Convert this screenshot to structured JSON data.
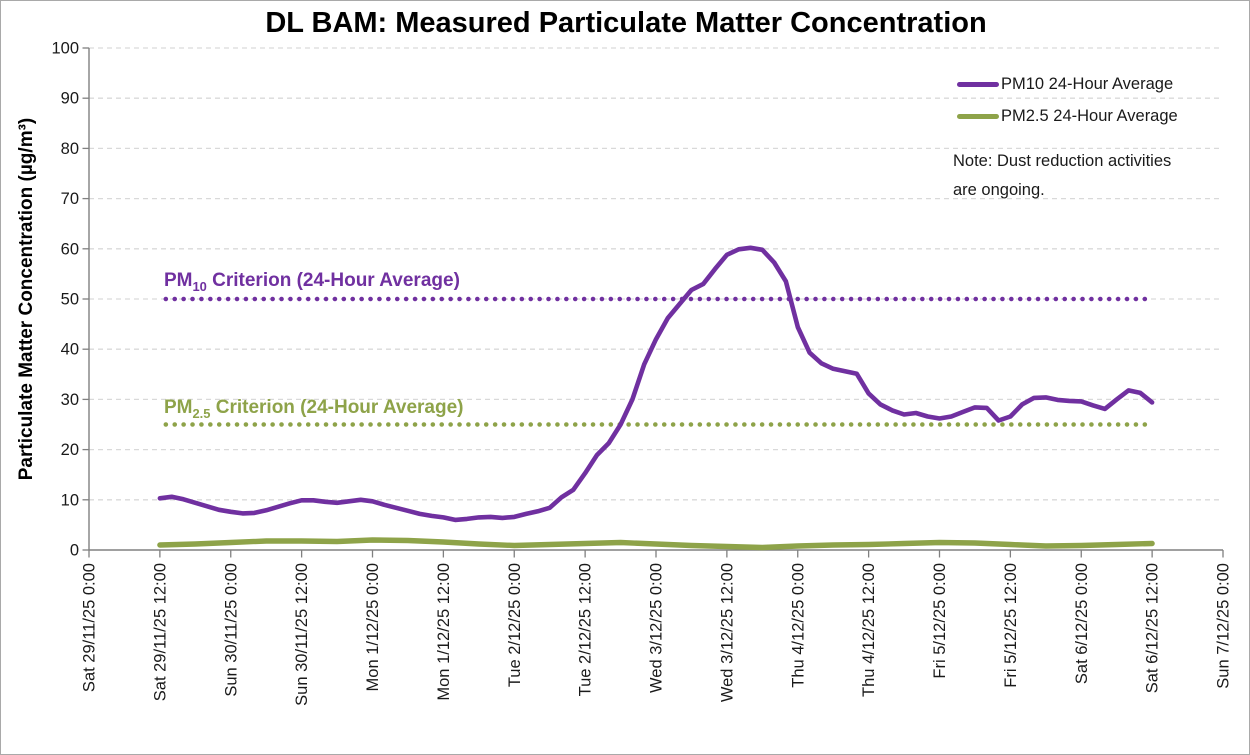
{
  "chart_data": {
    "type": "line",
    "title": "DL BAM: Measured Particulate Matter Concentration",
    "ylabel": "Particulate Matter Concentration (µg/m³)",
    "xlabel": "",
    "ylim": [
      0,
      100
    ],
    "ytick_step": 10,
    "yticks": [
      0,
      10,
      20,
      30,
      40,
      50,
      60,
      70,
      80,
      90,
      100
    ],
    "grid": "horizontal-dashed",
    "legend_position": "top-right",
    "x_axis_hours_range": [
      -12,
      180
    ],
    "x_tick_labels": [
      "Sat 29/11/25 0:00",
      "Sat 29/11/25 12:00",
      "Sun 30/11/25 0:00",
      "Sun 30/11/25 12:00",
      "Mon 1/12/25 0:00",
      "Mon 1/12/25 12:00",
      "Tue 2/12/25 0:00",
      "Tue 2/12/25 12:00",
      "Wed 3/12/25 0:00",
      "Wed 3/12/25 12:00",
      "Thu 4/12/25 0:00",
      "Thu 4/12/25 12:00",
      "Fri 5/12/25 0:00",
      "Fri 5/12/25 12:00",
      "Sat 6/12/25 0:00",
      "Sat 6/12/25 12:00",
      "Sun 7/12/25 0:00"
    ],
    "series": [
      {
        "name": "PM10 24-Hour Average",
        "color": "#7030A0",
        "x_hours": [
          0,
          2,
          4,
          6,
          8,
          10,
          12,
          14,
          16,
          18,
          20,
          22,
          24,
          26,
          28,
          30,
          32,
          34,
          36,
          38,
          40,
          42,
          44,
          46,
          48,
          50,
          52,
          54,
          56,
          58,
          60,
          62,
          64,
          66,
          68,
          70,
          72,
          74,
          76,
          78,
          80,
          82,
          84,
          86,
          88,
          90,
          92,
          94,
          96,
          98,
          100,
          102,
          104,
          106,
          108,
          110,
          112,
          114,
          116,
          118,
          120,
          122,
          124,
          126,
          128,
          130,
          132,
          134,
          136,
          138,
          140,
          142,
          144,
          146,
          148,
          150,
          152,
          154,
          156,
          158,
          160,
          162,
          164,
          166,
          168
        ],
        "values": [
          10.3,
          10.6,
          10.1,
          9.4,
          8.7,
          8.0,
          7.6,
          7.3,
          7.4,
          7.9,
          8.6,
          9.3,
          9.9,
          9.9,
          9.6,
          9.4,
          9.7,
          10.0,
          9.7,
          9.0,
          8.4,
          7.8,
          7.2,
          6.8,
          6.5,
          6.0,
          6.2,
          6.5,
          6.6,
          6.4,
          6.6,
          7.2,
          7.7,
          8.4,
          10.5,
          12.0,
          15.3,
          18.9,
          21.3,
          25.0,
          30.0,
          37.0,
          42.0,
          46.2,
          49.0,
          51.8,
          53.0,
          56.0,
          58.8,
          59.9,
          60.2,
          59.8,
          57.3,
          53.5,
          44.4,
          39.3,
          37.2,
          36.1,
          35.6,
          35.1,
          31.2,
          29.0,
          27.8,
          27.0,
          27.3,
          26.6,
          26.2,
          26.6,
          27.5,
          28.4,
          28.3,
          25.8,
          26.6,
          29.0,
          30.3,
          30.4,
          29.9,
          29.7,
          29.6,
          28.8,
          28.1,
          30.0,
          31.8,
          31.3,
          29.4
        ]
      },
      {
        "name": "PM2.5 24-Hour Average",
        "color": "#8EA349",
        "x_hours": [
          0,
          6,
          12,
          18,
          24,
          30,
          36,
          42,
          48,
          54,
          60,
          66,
          72,
          78,
          84,
          90,
          96,
          102,
          108,
          114,
          120,
          126,
          132,
          138,
          144,
          150,
          156,
          162,
          168
        ],
        "values": [
          1.0,
          1.2,
          1.5,
          1.8,
          1.8,
          1.7,
          2.0,
          1.9,
          1.6,
          1.2,
          0.9,
          1.1,
          1.3,
          1.5,
          1.2,
          0.9,
          0.7,
          0.5,
          0.8,
          1.0,
          1.1,
          1.3,
          1.5,
          1.4,
          1.1,
          0.8,
          0.9,
          1.1,
          1.3
        ]
      }
    ],
    "reference_lines": [
      {
        "label_prefix": "PM",
        "label_sub": "10",
        "label_rest": " Criterion (24-Hour Average)",
        "value": 50,
        "color": "#7030A0"
      },
      {
        "label_prefix": "PM",
        "label_sub": "2.5",
        "label_rest": " Criterion (24-Hour Average)",
        "value": 25,
        "color": "#8EA349"
      }
    ],
    "note_lines": [
      "Note: Dust reduction activities",
      "are ongoing."
    ],
    "note": "Note: Dust reduction activities are ongoing.",
    "colors": {
      "gridline": "#D9D9D9",
      "axis": "#808080",
      "text": "#1a1a1a",
      "title": "#000000"
    }
  }
}
